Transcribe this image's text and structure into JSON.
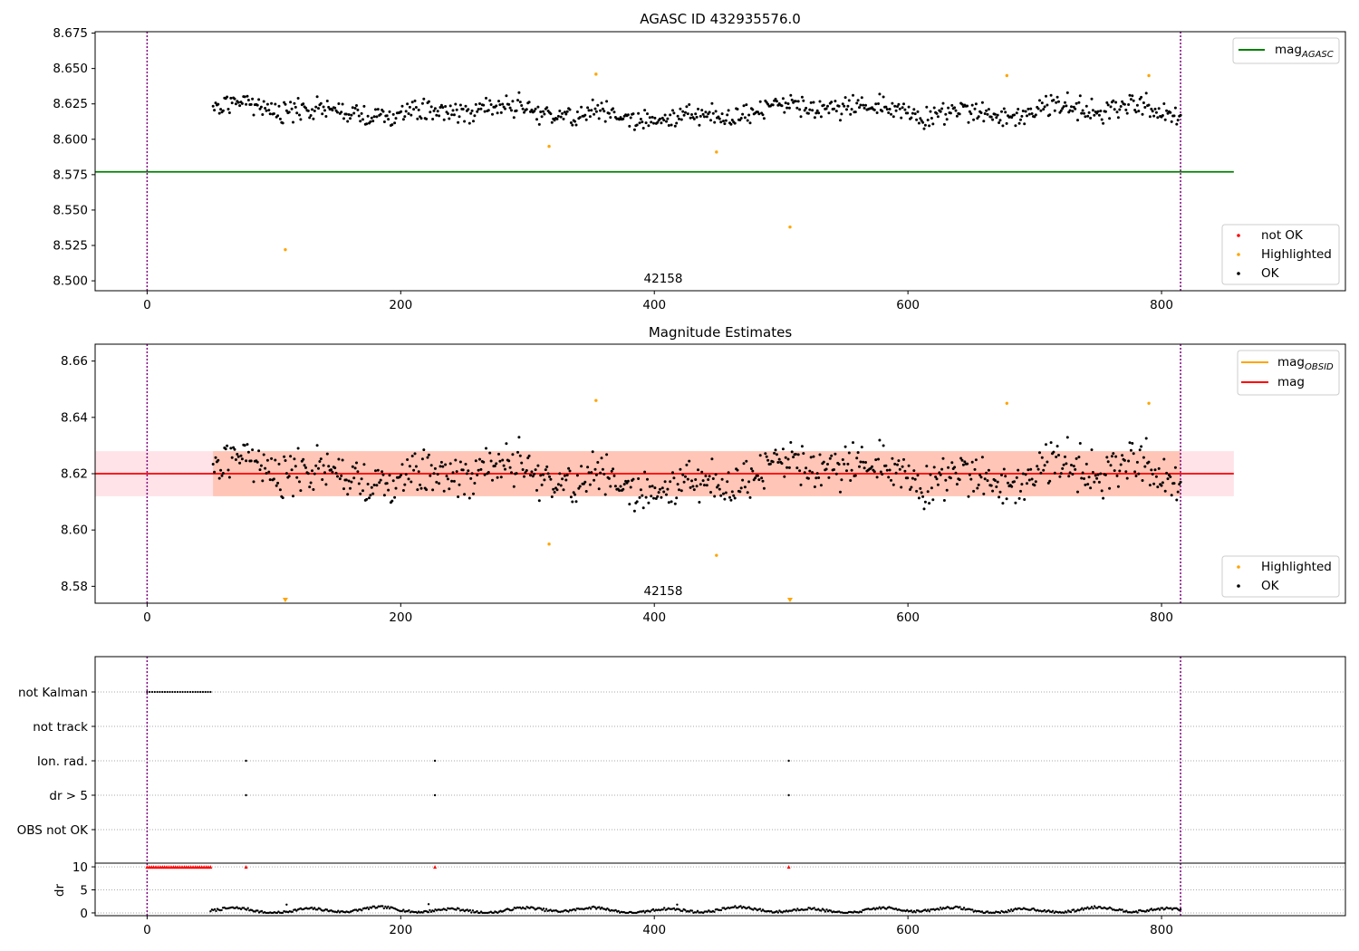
{
  "chart_data": [
    {
      "id": "panel1",
      "type": "scatter",
      "title": "AGASC ID 432935576.0",
      "annotation": "42158",
      "xlim": [
        -41,
        945
      ],
      "ylim": [
        8.493,
        8.676
      ],
      "xticks": [
        "0",
        "200",
        "400",
        "600",
        "800"
      ],
      "xtick_values": [
        0,
        200,
        400,
        600,
        800
      ],
      "yticks": [
        "8.500",
        "8.525",
        "8.550",
        "8.575",
        "8.600",
        "8.625",
        "8.650",
        "8.675"
      ],
      "ytick_values": [
        8.5,
        8.525,
        8.55,
        8.575,
        8.6,
        8.625,
        8.65,
        8.675
      ],
      "vlines": [
        0,
        815
      ],
      "hline": {
        "y": 8.577,
        "x_range": [
          -41,
          857
        ],
        "color": "#008000"
      },
      "ok_x_range": [
        52,
        815
      ],
      "ok_center": 8.6195,
      "ok_noise": 0.0075,
      "ok_count": 763,
      "highlighted": [
        [
          109,
          8.522
        ],
        [
          317,
          8.595
        ],
        [
          354,
          8.646
        ],
        [
          449,
          8.591
        ],
        [
          507,
          8.538
        ],
        [
          678,
          8.645
        ],
        [
          790,
          8.645
        ]
      ],
      "legend_top": [
        {
          "label": "mag",
          "sub": "AGASC",
          "color": "#008000"
        }
      ],
      "legend_bottom": [
        {
          "label": "not OK",
          "color": "#ff0000"
        },
        {
          "label": "Highlighted",
          "color": "#ffa500"
        },
        {
          "label": "OK",
          "color": "#000000"
        }
      ]
    },
    {
      "id": "panel2",
      "type": "scatter",
      "title": "Magnitude Estimates",
      "annotation": "42158",
      "xlim": [
        -41,
        945
      ],
      "ylim": [
        8.574,
        8.666
      ],
      "xticks": [
        "0",
        "200",
        "400",
        "600",
        "800"
      ],
      "xtick_values": [
        0,
        200,
        400,
        600,
        800
      ],
      "yticks": [
        "8.58",
        "8.60",
        "8.62",
        "8.64",
        "8.66"
      ],
      "ytick_values": [
        8.58,
        8.6,
        8.62,
        8.64,
        8.66
      ],
      "vlines": [
        0,
        815
      ],
      "mag_line": {
        "y": 8.62,
        "x_range": [
          -41,
          857
        ],
        "color": "#ff0000"
      },
      "pink_band": {
        "y": [
          8.612,
          8.628
        ],
        "x_range": [
          -41,
          857
        ]
      },
      "orange_band": {
        "y": [
          8.612,
          8.628
        ],
        "x_range": [
          52,
          815
        ]
      },
      "ok_x_range": [
        52,
        815
      ],
      "ok_center": 8.6195,
      "ok_noise": 0.0075,
      "ok_count": 763,
      "highlighted": [
        [
          317,
          8.595
        ],
        [
          354,
          8.646
        ],
        [
          449,
          8.591
        ],
        [
          678,
          8.645
        ],
        [
          790,
          8.645
        ]
      ],
      "highlighted_offscale": [
        109,
        507
      ],
      "legend_top": [
        {
          "label": "mag",
          "sub": "OBSID",
          "color": "#ffa500"
        },
        {
          "label": "mag",
          "sub": "",
          "color": "#ff0000"
        }
      ],
      "legend_bottom": [
        {
          "label": "Highlighted",
          "color": "#ffa500"
        },
        {
          "label": "OK",
          "color": "#000000"
        }
      ]
    },
    {
      "id": "panel3",
      "type": "scatter",
      "xlim": [
        -41,
        945
      ],
      "xticks": [
        "0",
        "200",
        "400",
        "600",
        "800"
      ],
      "xtick_values": [
        0,
        200,
        400,
        600,
        800
      ],
      "vlines": [
        0,
        815
      ],
      "flag_labels": [
        "not Kalman",
        "not track",
        "Ion. rad.",
        "dr > 5",
        "OBS not OK"
      ],
      "flags": {
        "not Kalman": {
          "x_range": [
            0,
            50
          ],
          "count": 26
        },
        "not track": [],
        "Ion. rad.": [
          78,
          227,
          506
        ],
        "dr > 5": [
          78,
          227,
          506
        ],
        "OBS not OK": []
      },
      "dr": {
        "ylabel": "dr",
        "yticks": [
          "0",
          "5",
          "10"
        ],
        "ytick_values": [
          0,
          5,
          10
        ],
        "ylim": [
          -0.6,
          10.8
        ],
        "capped_value": 10,
        "capped_x": [
          78,
          227,
          506
        ],
        "capped_x_range": [
          0,
          50
        ],
        "normal_x_range": [
          50,
          815
        ],
        "normal_mean": 0.6,
        "outliers": [
          [
            110,
            1.8
          ],
          [
            222,
            1.9
          ],
          [
            418,
            1.8
          ]
        ]
      }
    }
  ]
}
